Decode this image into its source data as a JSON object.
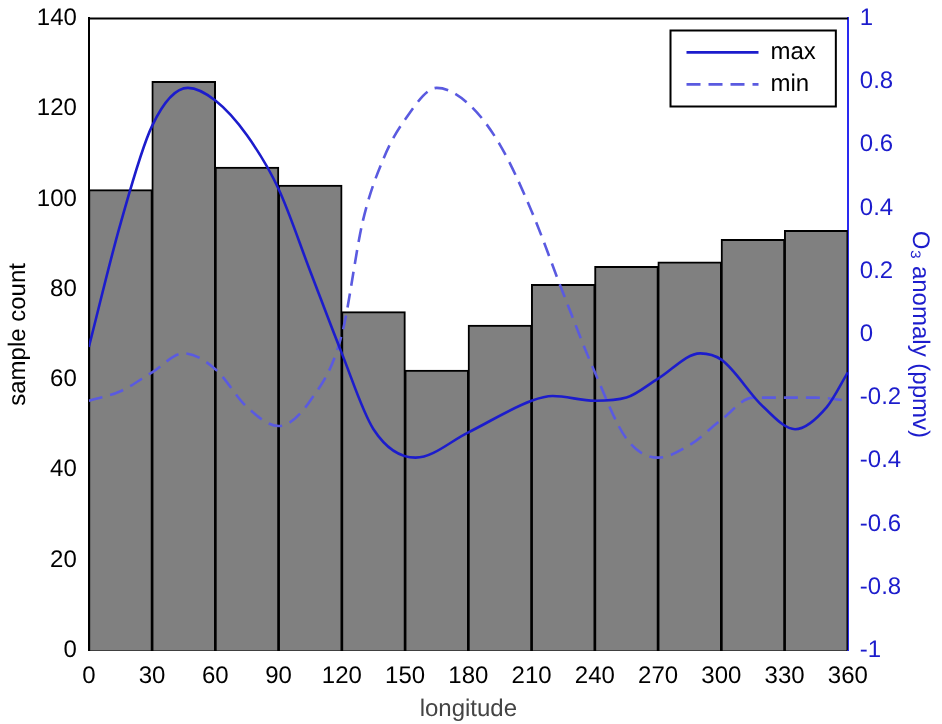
{
  "chart_data": {
    "type": "histogram",
    "xlabel": "longitude",
    "ylabel": "sample count",
    "y2label": "O₃ anomaly (ppmv)",
    "bins": [
      0,
      30,
      60,
      90,
      120,
      150,
      180,
      210,
      240,
      270,
      300,
      330,
      360
    ],
    "values": [
      102,
      126,
      107,
      103,
      75,
      62,
      72,
      81,
      85,
      86,
      91,
      93
    ],
    "color": "#808080",
    "xlim": [
      0,
      360
    ],
    "xticks": [
      0,
      30,
      60,
      90,
      120,
      150,
      180,
      210,
      240,
      270,
      300,
      330,
      360
    ],
    "ylim": [
      0,
      140
    ],
    "yticks": [
      0,
      20,
      40,
      60,
      80,
      100,
      120,
      140
    ],
    "y2lim": [
      -1,
      1
    ],
    "y2ticks": [
      -1,
      -0.8,
      -0.6,
      -0.4,
      -0.2,
      0,
      0.2,
      0.4,
      0.6,
      0.8,
      1
    ],
    "legend": "top right",
    "grid": false,
    "marker": "none",
    "series": [
      {
        "name": "max",
        "type": "line",
        "axis": "y2",
        "color": "#1c1ccc",
        "line_style": "solid",
        "x": [
          0,
          15,
          30,
          47,
          60,
          75,
          90,
          105,
          120,
          135,
          155,
          180,
          210,
          220,
          240,
          255,
          270,
          290,
          300,
          320,
          335,
          350,
          360
        ],
        "values": [
          -0.04,
          0.35,
          0.66,
          0.78,
          0.74,
          0.63,
          0.46,
          0.2,
          -0.06,
          -0.3,
          -0.39,
          -0.31,
          -0.21,
          -0.195,
          -0.21,
          -0.2,
          -0.14,
          -0.06,
          -0.08,
          -0.23,
          -0.3,
          -0.23,
          -0.12
        ]
      },
      {
        "name": "min",
        "type": "line",
        "axis": "y2",
        "color": "#5a5ae0",
        "line_style": "dashed",
        "x": [
          0,
          15,
          30,
          45,
          60,
          75,
          90,
          105,
          120,
          130,
          140,
          150,
          165,
          180,
          195,
          210,
          225,
          240,
          255,
          270,
          285,
          300,
          315,
          330,
          345,
          360
        ],
        "values": [
          -0.21,
          -0.18,
          -0.12,
          -0.06,
          -0.11,
          -0.23,
          -0.29,
          -0.21,
          0,
          0.36,
          0.56,
          0.68,
          0.78,
          0.73,
          0.6,
          0.39,
          0.13,
          -0.12,
          -0.33,
          -0.39,
          -0.35,
          -0.27,
          -0.2,
          -0.2,
          -0.2,
          -0.21
        ]
      }
    ]
  }
}
